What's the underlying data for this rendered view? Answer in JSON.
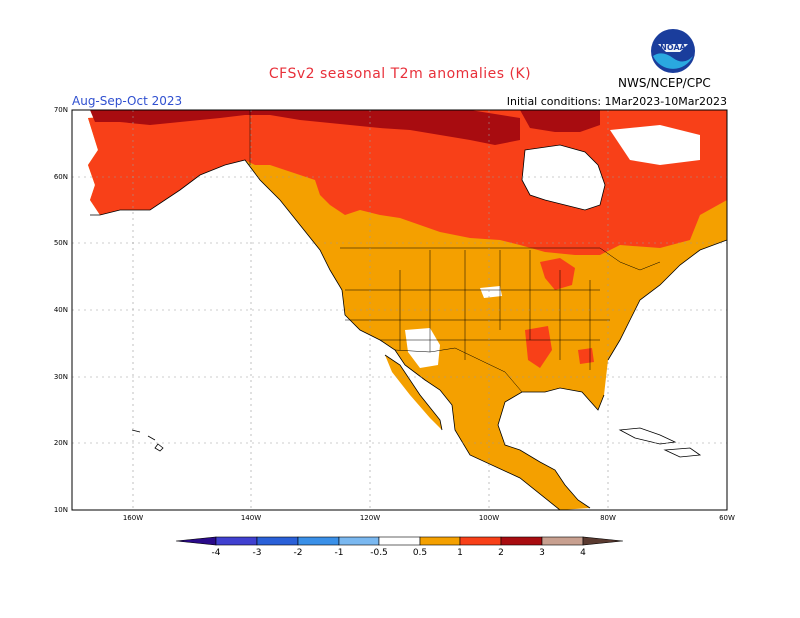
{
  "header": {
    "title": "CFSv2 seasonal T2m anomalies (K)",
    "season": "Aug-Sep-Oct 2023",
    "initial_conditions": "Initial conditions: 1Mar2023-10Mar2023",
    "agency": "NWS/NCEP/CPC",
    "logo_text": "NOAA"
  },
  "map": {
    "lat_labels": [
      "70N",
      "60N",
      "50N",
      "40N",
      "30N",
      "20N",
      "10N"
    ],
    "lon_labels": [
      "160W",
      "140W",
      "120W",
      "100W",
      "80W",
      "60W"
    ]
  },
  "colorbar": {
    "labels": [
      "-4",
      "-3",
      "-2",
      "-1",
      "-0.5",
      "0.5",
      "1",
      "2",
      "3",
      "4"
    ],
    "colors": {
      "lt_neg4": "#2a0a8a",
      "neg4_neg3": "#4040d0",
      "neg3_neg2": "#2a60d8",
      "neg2_neg1": "#3a90e8",
      "neg1_neg05": "#7ab8f0",
      "neg05_05": "#ffffff",
      "p05_1": "#f4a000",
      "p1_2": "#f84018",
      "p2_3": "#a80c10",
      "p3_4": "#c8a090",
      "gt4": "#5a3a30"
    }
  }
}
